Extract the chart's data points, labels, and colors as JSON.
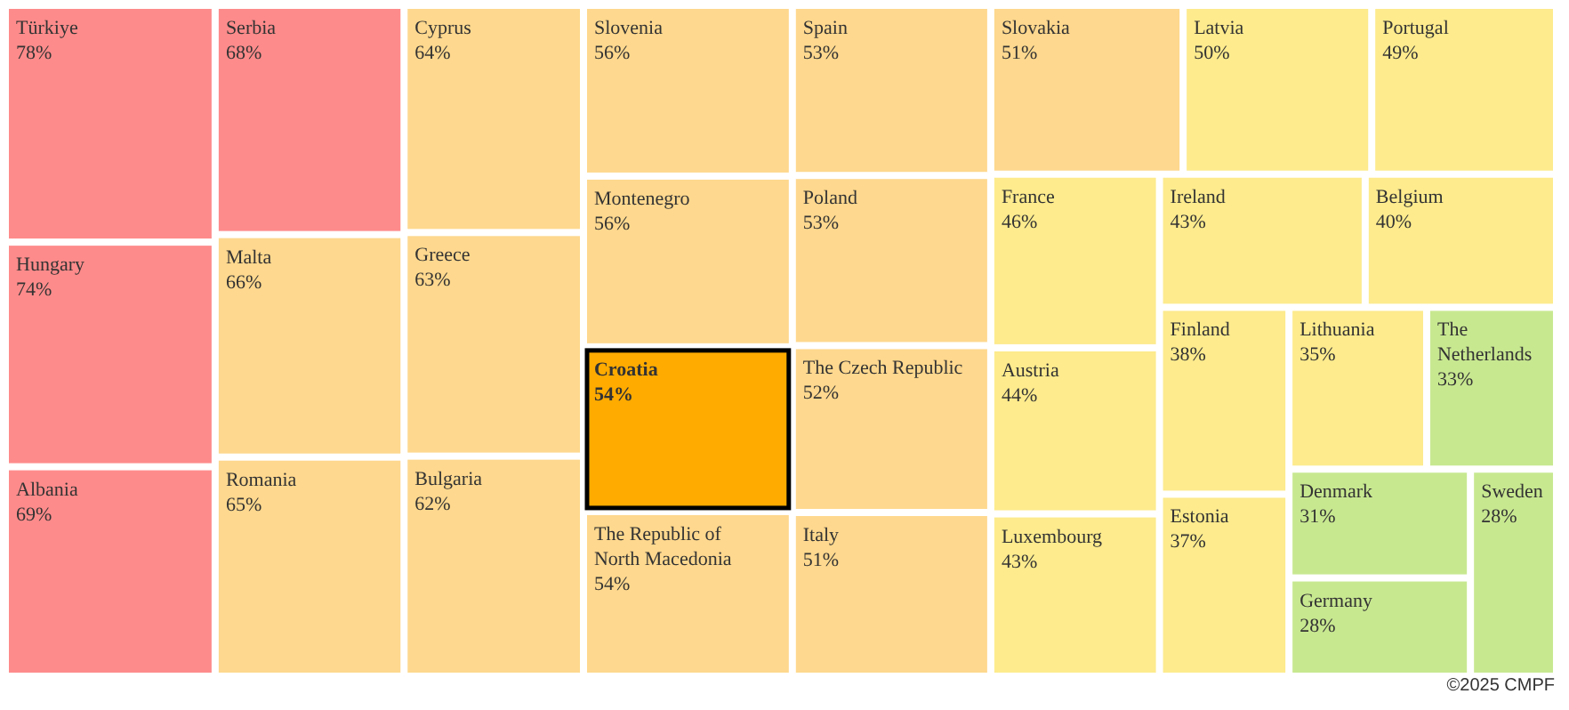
{
  "chart_data": {
    "type": "other",
    "categories": [
      "Türkiye",
      "Hungary",
      "Albania",
      "Serbia",
      "Malta",
      "Romania",
      "Cyprus",
      "Greece",
      "Bulgaria",
      "Slovenia",
      "Montenegro",
      "Croatia",
      "The Republic of North Macedonia",
      "Spain",
      "Poland",
      "The Czech Republic",
      "Italy",
      "Slovakia",
      "Latvia",
      "Portugal",
      "France",
      "Austria",
      "Luxembourg",
      "Ireland",
      "Belgium",
      "Finland",
      "Estonia",
      "Lithuania",
      "The Netherlands",
      "Denmark",
      "Germany",
      "Sweden"
    ],
    "values": [
      78,
      74,
      69,
      68,
      66,
      65,
      64,
      63,
      62,
      56,
      56,
      54,
      54,
      53,
      53,
      52,
      51,
      51,
      50,
      49,
      46,
      44,
      43,
      43,
      40,
      38,
      37,
      35,
      33,
      31,
      28,
      28
    ],
    "value_labels": [
      "78%",
      "74%",
      "69%",
      "68%",
      "66%",
      "65%",
      "64%",
      "63%",
      "62%",
      "56%",
      "56%",
      "54%",
      "54%",
      "53%",
      "53%",
      "52%",
      "51%",
      "51%",
      "50%",
      "49%",
      "46%",
      "44%",
      "43%",
      "43%",
      "40%",
      "38%",
      "37%",
      "35%",
      "33%",
      "31%",
      "28%",
      "28%"
    ],
    "colors": [
      "#fe8b8b",
      "#fe8b8b",
      "#fe8b8b",
      "#fe8b8b",
      "#fed88e",
      "#fed88e",
      "#fed88e",
      "#fed88e",
      "#fed88e",
      "#fed88e",
      "#fed88e",
      "#ffab00",
      "#fed88e",
      "#fed88e",
      "#fed88e",
      "#fed88e",
      "#fed88e",
      "#fed88e",
      "#fdeb8d",
      "#fdeb8d",
      "#fdeb8d",
      "#fdeb8d",
      "#fdeb8d",
      "#fdeb8d",
      "#fdeb8d",
      "#fdeb8d",
      "#fdeb8d",
      "#fdeb8d",
      "#c8e890",
      "#c8e890",
      "#c8e890",
      "#c8e890"
    ],
    "annotations": [
      "©2025 CMPF"
    ]
  }
}
